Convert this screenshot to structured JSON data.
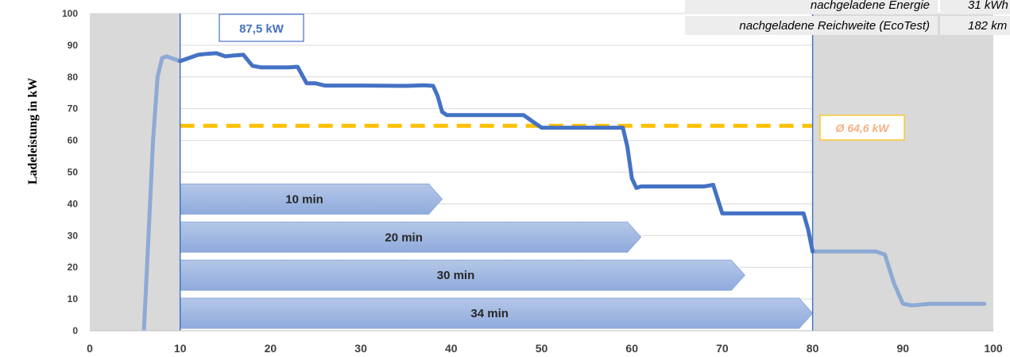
{
  "chart_data": {
    "type": "line",
    "title": "",
    "xlabel": "",
    "ylabel": "Ladeleistung in kW",
    "xlim": [
      0,
      100
    ],
    "ylim": [
      0,
      100
    ],
    "x_ticks": [
      0,
      10,
      20,
      30,
      40,
      50,
      60,
      70,
      80,
      90,
      100
    ],
    "y_ticks": [
      0,
      10,
      20,
      30,
      40,
      50,
      60,
      70,
      80,
      90,
      100
    ],
    "grid": "horizontal",
    "shaded_regions": [
      {
        "x_start": 0,
        "x_end": 10,
        "color": "#d9d9d9"
      },
      {
        "x_start": 80,
        "x_end": 100,
        "color": "#d9d9d9"
      }
    ],
    "vertical_lines": [
      10,
      80
    ],
    "series": [
      {
        "color": "#4472c4",
        "faded_color": "#8ea9d4",
        "highlight_range": [
          10,
          80
        ],
        "points": [
          [
            6,
            0.5
          ],
          [
            6.5,
            30
          ],
          [
            7,
            60
          ],
          [
            7.5,
            80
          ],
          [
            8,
            86
          ],
          [
            8.5,
            86.5
          ],
          [
            9.5,
            85.5
          ],
          [
            10,
            85
          ],
          [
            11,
            86
          ],
          [
            12,
            87
          ],
          [
            13,
            87.3
          ],
          [
            14,
            87.5
          ],
          [
            15,
            86.5
          ],
          [
            16,
            86.8
          ],
          [
            17,
            87
          ],
          [
            18,
            83.5
          ],
          [
            19,
            83
          ],
          [
            22,
            83
          ],
          [
            23,
            83.2
          ],
          [
            24,
            78
          ],
          [
            25,
            78
          ],
          [
            26,
            77.3
          ],
          [
            30,
            77.3
          ],
          [
            35,
            77.2
          ],
          [
            37,
            77.4
          ],
          [
            38,
            77.2
          ],
          [
            38.5,
            74
          ],
          [
            39,
            69
          ],
          [
            39.5,
            68
          ],
          [
            42,
            68
          ],
          [
            47,
            68
          ],
          [
            48,
            68
          ],
          [
            49,
            66
          ],
          [
            50,
            64
          ],
          [
            52,
            64
          ],
          [
            58,
            64
          ],
          [
            59,
            64
          ],
          [
            59.5,
            58
          ],
          [
            60,
            48
          ],
          [
            60.5,
            45
          ],
          [
            61,
            45.5
          ],
          [
            65,
            45.5
          ],
          [
            68,
            45.5
          ],
          [
            69,
            46
          ],
          [
            70,
            37
          ],
          [
            71,
            37
          ],
          [
            75,
            37
          ],
          [
            78,
            37
          ],
          [
            79,
            37
          ],
          [
            79.5,
            32
          ],
          [
            80,
            25
          ],
          [
            81,
            25
          ],
          [
            85,
            25
          ],
          [
            87,
            25
          ],
          [
            88,
            24
          ],
          [
            89,
            15
          ],
          [
            90,
            8.5
          ],
          [
            91,
            8
          ],
          [
            93,
            8.5
          ],
          [
            95,
            8.5
          ],
          [
            99,
            8.5
          ]
        ]
      }
    ],
    "average_line": {
      "y": 64.6,
      "x_start": 10,
      "x_end": 80,
      "color": "#ffc000",
      "label": "Ø 64,6 kW",
      "label_color": "#f4b183"
    },
    "peak_label": {
      "text": "87,5 kW",
      "color": "#4472c4"
    },
    "duration_bars": [
      {
        "label": "10 min",
        "y": 41.5,
        "x_start": 10,
        "x_end": 39
      },
      {
        "label": "20 min",
        "y": 29.5,
        "x_start": 10,
        "x_end": 61
      },
      {
        "label": "30 min",
        "y": 17.5,
        "x_start": 10,
        "x_end": 72.5
      },
      {
        "label": "34 min",
        "y": 5.5,
        "x_start": 10,
        "x_end": 80
      }
    ],
    "table_rows": [
      {
        "label": "nachgeladene Energie",
        "value": "31 kWh"
      },
      {
        "label": "nachgeladene Reichweite (EcoTest)",
        "value": "182 km"
      }
    ]
  }
}
